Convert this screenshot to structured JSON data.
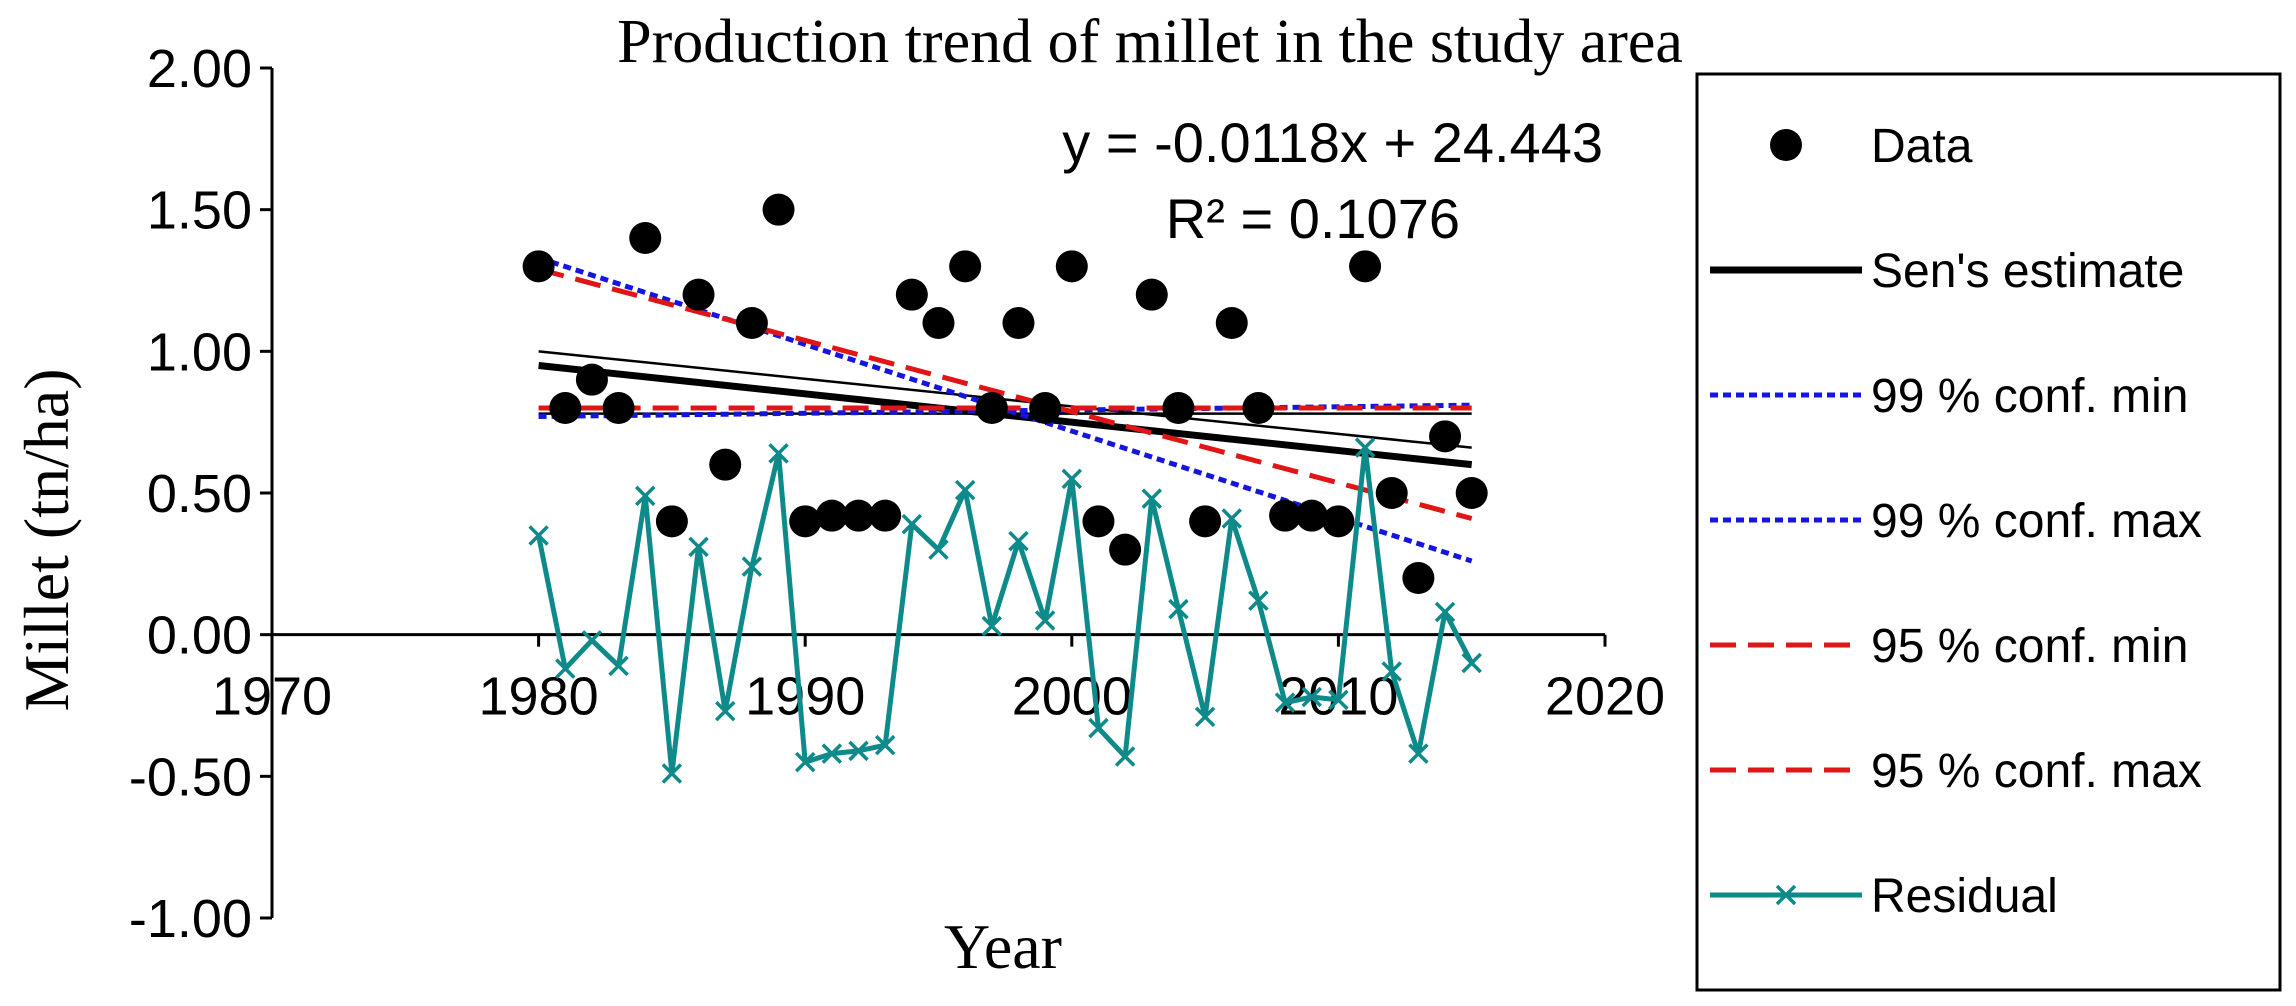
{
  "chart_data": {
    "type": "scatter",
    "title": "Production trend of millet in the study area",
    "xlabel": "Year",
    "ylabel": "Millet (tn/ha)",
    "xlim": [
      1970,
      2020
    ],
    "ylim": [
      -1.0,
      2.0
    ],
    "x_ticks": [
      "1970",
      "1980",
      "1990",
      "2000",
      "2010",
      "2020"
    ],
    "y_ticks": [
      "2.00",
      "1.50",
      "1.00",
      "0.50",
      "0.00",
      "-0.50",
      "-1.00"
    ],
    "grid": false,
    "legend_position": "right",
    "annotation": {
      "equation": "y = -0.0118x + 24.443",
      "r_squared": "R² = 0.1076"
    },
    "x": [
      1980,
      1981,
      1982,
      1983,
      1984,
      1985,
      1986,
      1987,
      1988,
      1989,
      1990,
      1991,
      1992,
      1993,
      1994,
      1995,
      1996,
      1997,
      1998,
      1999,
      2000,
      2001,
      2002,
      2003,
      2004,
      2005,
      2006,
      2007,
      2008,
      2009,
      2010,
      2011,
      2012,
      2013,
      2014,
      2015
    ],
    "series": [
      {
        "name": "Data",
        "kind": "markers",
        "color": "#000000",
        "values": [
          1.3,
          0.8,
          0.9,
          0.8,
          1.4,
          0.4,
          1.2,
          0.6,
          1.1,
          1.5,
          0.4,
          0.42,
          0.42,
          0.42,
          1.2,
          1.1,
          1.3,
          0.8,
          1.1,
          0.8,
          1.3,
          0.4,
          0.3,
          1.2,
          0.8,
          0.4,
          1.1,
          0.8,
          0.42,
          0.42,
          0.4,
          1.3,
          0.5,
          0.2,
          0.7,
          0.5
        ]
      },
      {
        "name": "Residual",
        "kind": "line-x",
        "color": "#0E8A8A",
        "values": [
          0.35,
          -0.12,
          -0.02,
          -0.11,
          0.49,
          -0.49,
          0.31,
          -0.27,
          0.24,
          0.64,
          -0.45,
          -0.42,
          -0.41,
          -0.39,
          0.39,
          0.3,
          0.51,
          0.03,
          0.33,
          0.05,
          0.55,
          -0.33,
          -0.43,
          0.48,
          0.09,
          -0.29,
          0.41,
          0.12,
          -0.24,
          -0.22,
          -0.23,
          0.66,
          -0.13,
          -0.42,
          0.08,
          -0.1
        ]
      }
    ],
    "lines": [
      {
        "name": "Sen's estimate",
        "style": "solid-thick",
        "color": "#000000",
        "x": [
          1980,
          2015
        ],
        "y": [
          0.95,
          0.6
        ]
      },
      {
        "name": "99 % conf. min",
        "style": "dotted",
        "color": "#1515E0",
        "x": [
          1980,
          2015
        ],
        "y": [
          1.33,
          0.26
        ]
      },
      {
        "name": "99 % conf. max",
        "style": "dotted",
        "color": "#1515E0",
        "x": [
          1980,
          2015
        ],
        "y": [
          0.77,
          0.81
        ]
      },
      {
        "name": "95 % conf. min",
        "style": "dashed",
        "color": "#E01515",
        "x": [
          1980,
          2015
        ],
        "y": [
          1.29,
          0.41
        ]
      },
      {
        "name": "95 % conf. max",
        "style": "dashed",
        "color": "#E01515",
        "x": [
          1980,
          2015
        ],
        "y": [
          0.8,
          0.8
        ]
      }
    ],
    "thin_lines": [
      {
        "name": "linear trend",
        "color": "#000000",
        "x": [
          1980,
          2015
        ],
        "y": [
          1.0,
          0.66
        ]
      },
      {
        "name": "flat reference",
        "color": "#000000",
        "x": [
          1980,
          2015
        ],
        "y": [
          0.78,
          0.78
        ]
      }
    ],
    "legend": [
      {
        "label": "Data",
        "kind": "marker",
        "color": "#000000"
      },
      {
        "label": "Sen's estimate",
        "kind": "solid-thick",
        "color": "#000000"
      },
      {
        "label": "99 % conf. min",
        "kind": "dotted",
        "color": "#1515E0"
      },
      {
        "label": "99 % conf. max",
        "kind": "dotted",
        "color": "#1515E0"
      },
      {
        "label": "95 % conf. min",
        "kind": "dashed",
        "color": "#E01515"
      },
      {
        "label": "95 % conf. max",
        "kind": "dashed",
        "color": "#E01515"
      },
      {
        "label": "Residual",
        "kind": "line-x",
        "color": "#0E8A8A"
      }
    ]
  }
}
